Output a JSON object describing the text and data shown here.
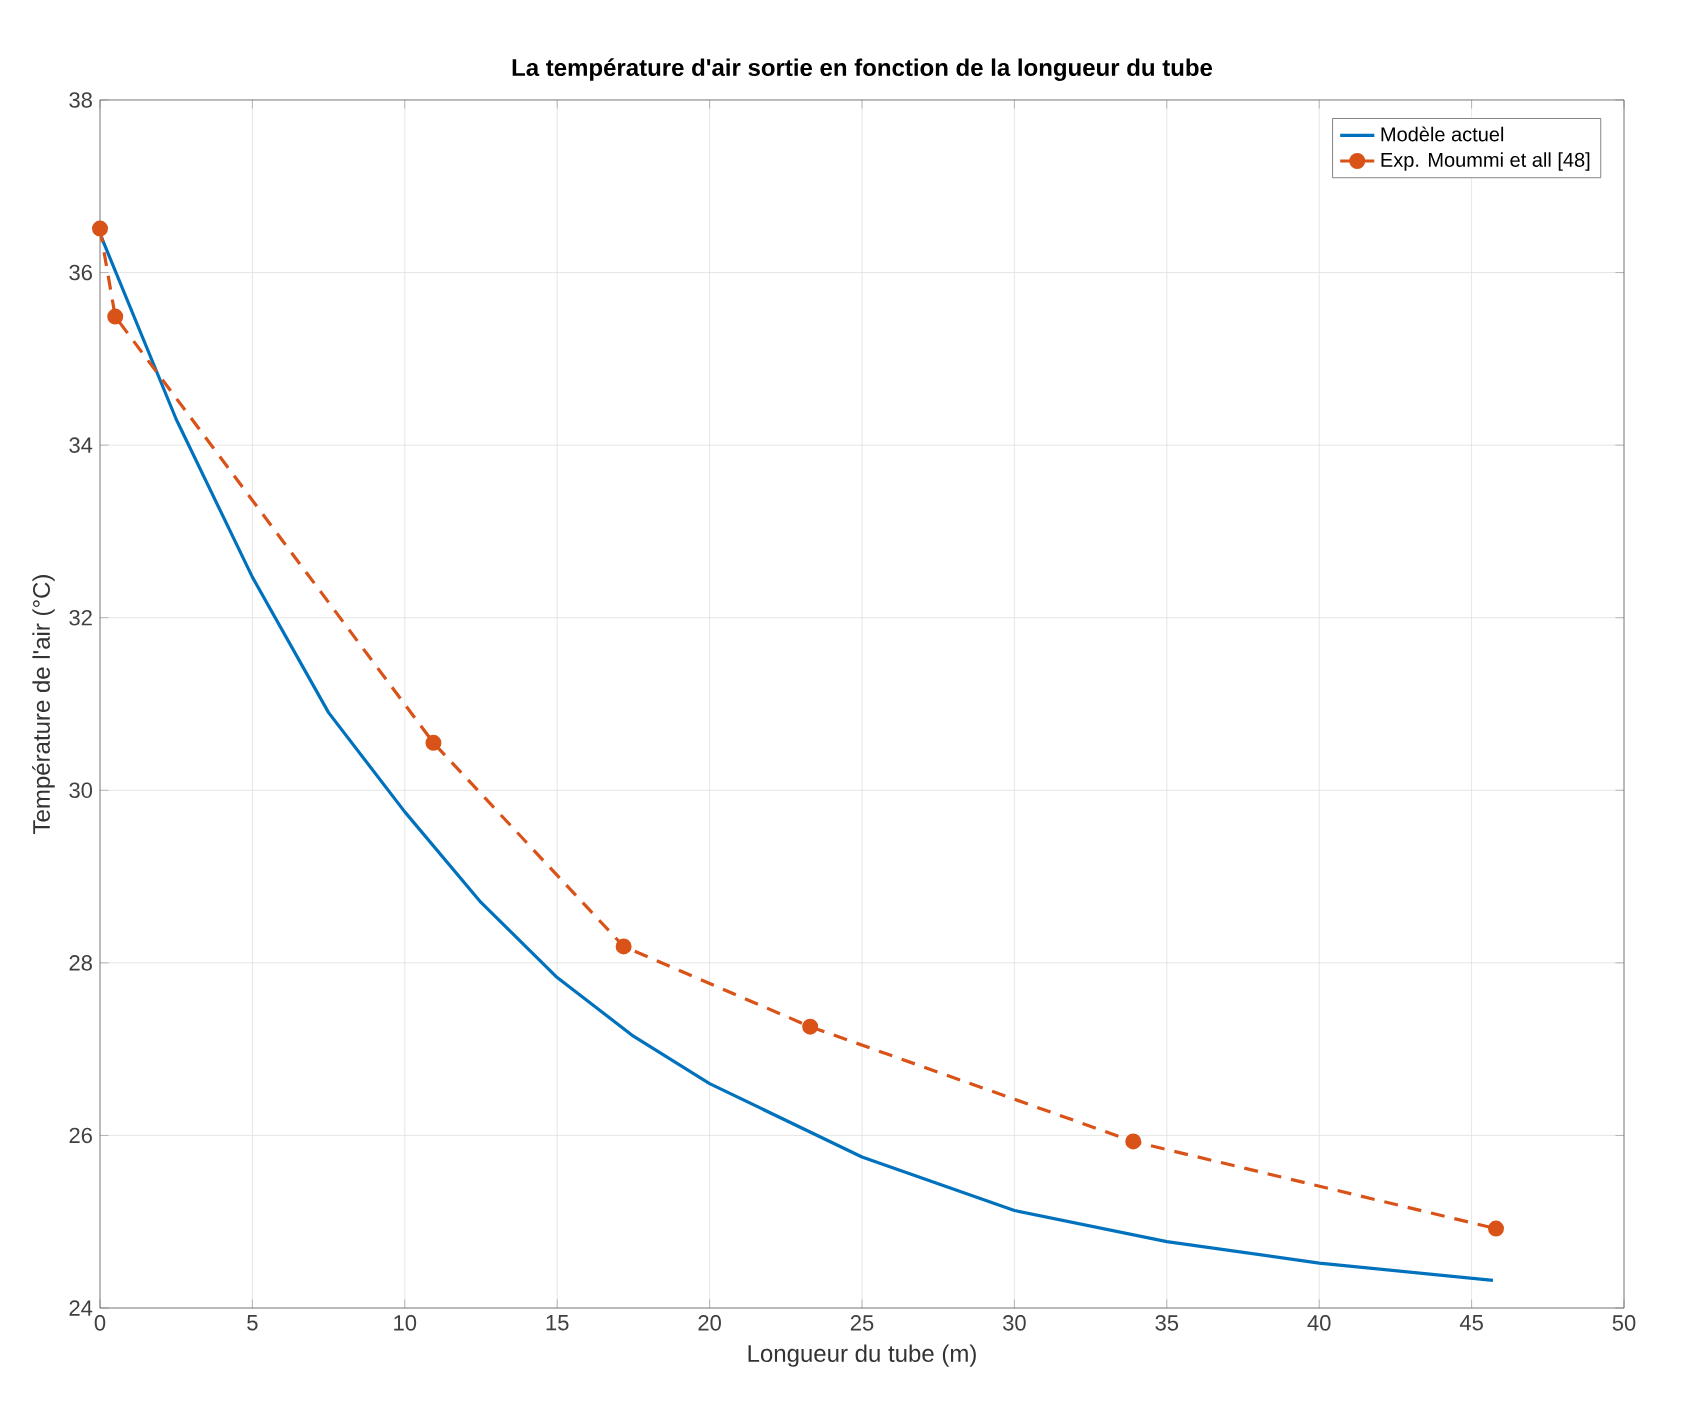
{
  "chart_data": {
    "type": "line",
    "title": "La température d'air sortie en fonction de la longueur du tube",
    "xlabel": "Longueur du tube (m)",
    "ylabel": "Température de l'air (°C)",
    "xlim": [
      0,
      50
    ],
    "xticks": [
      0,
      5,
      10,
      15,
      20,
      25,
      30,
      35,
      40,
      45,
      50
    ],
    "ylim": [
      24,
      38
    ],
    "yticks": [
      24,
      26,
      28,
      30,
      32,
      34,
      36,
      38
    ],
    "grid": true,
    "legend": "top right",
    "series": [
      {
        "name": "Modèle actuel",
        "color": "#0072bd",
        "marker": "none",
        "line_style": "solid",
        "x": [
          0,
          2.5,
          5,
          7.5,
          10,
          12.5,
          15,
          17.5,
          20,
          25,
          30,
          35,
          40,
          45.7
        ],
        "values": [
          36.45,
          34.3,
          32.47,
          30.9,
          29.75,
          28.7,
          27.83,
          27.15,
          26.6,
          25.75,
          25.13,
          24.77,
          24.52,
          24.32
        ]
      },
      {
        "name": "Exp. Moummi et all [48]",
        "color": "#d95319",
        "marker": "circle",
        "line_style": "dashed",
        "x": [
          0,
          0.5,
          10.94,
          17.18,
          23.3,
          33.9,
          45.8
        ],
        "values": [
          36.51,
          35.49,
          30.55,
          28.19,
          27.26,
          25.93,
          24.92
        ]
      }
    ]
  }
}
